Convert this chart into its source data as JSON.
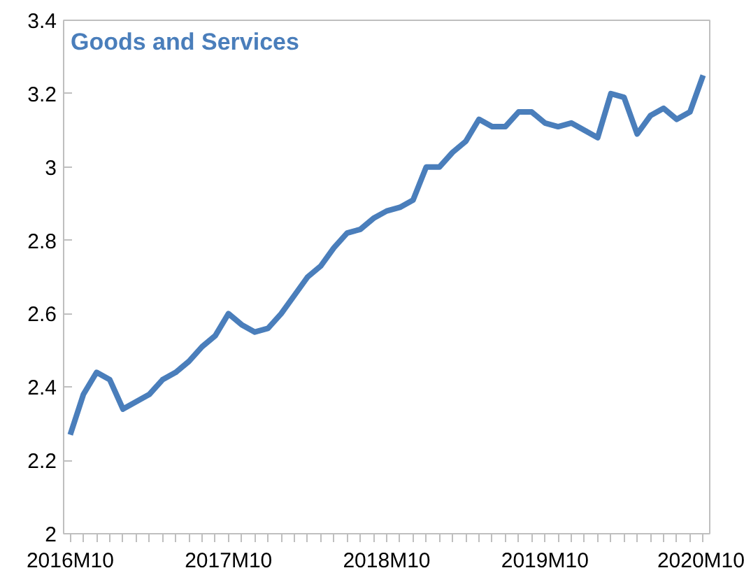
{
  "chart_data": {
    "type": "line",
    "title": "Goods and Services",
    "categories": [
      "2016M10",
      null,
      null,
      null,
      null,
      null,
      null,
      null,
      null,
      null,
      null,
      null,
      "2017M10",
      null,
      null,
      null,
      null,
      null,
      null,
      null,
      null,
      null,
      null,
      null,
      "2018M10",
      null,
      null,
      null,
      null,
      null,
      null,
      null,
      null,
      null,
      null,
      null,
      "2019M10",
      null,
      null,
      null,
      null,
      null,
      null,
      null,
      null,
      null,
      null,
      null,
      "2020M10"
    ],
    "series": [
      {
        "color": "#4a7ebb",
        "values": [
          2.27,
          2.38,
          2.44,
          2.42,
          2.34,
          2.36,
          2.38,
          2.42,
          2.44,
          2.47,
          2.51,
          2.54,
          2.6,
          2.57,
          2.55,
          2.56,
          2.6,
          2.65,
          2.7,
          2.73,
          2.78,
          2.82,
          2.83,
          2.86,
          2.88,
          2.89,
          2.91,
          3.0,
          3.0,
          3.04,
          3.07,
          3.13,
          3.11,
          3.11,
          3.15,
          3.15,
          3.12,
          3.11,
          3.12,
          3.1,
          3.08,
          3.2,
          3.19,
          3.09,
          3.14,
          3.16,
          3.13,
          3.15,
          3.25
        ]
      }
    ],
    "ylim": [
      2,
      3.4
    ],
    "yticks": [
      2,
      2.2,
      2.4,
      2.6,
      2.8,
      3,
      3.2,
      3.4
    ],
    "grid": false,
    "marker": "none",
    "line_style": "solid"
  }
}
